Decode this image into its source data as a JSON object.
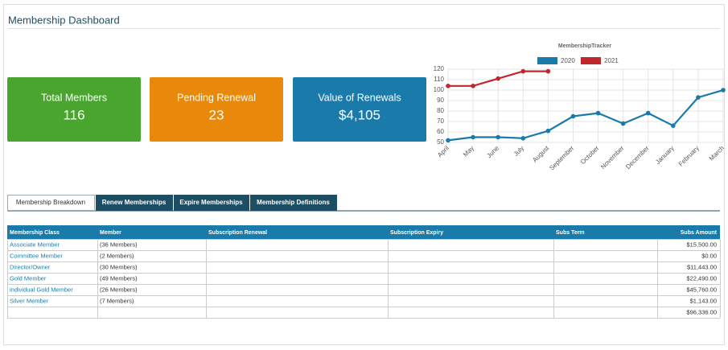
{
  "header": {
    "title": "Membership Dashboard"
  },
  "cards": [
    {
      "label": "Total Members",
      "value": "116"
    },
    {
      "label": "Pending Renewal",
      "value": "23"
    },
    {
      "label": "Value of Renewals",
      "value": "$4,105"
    }
  ],
  "chart_data": {
    "type": "line",
    "title": "MembershipTracker",
    "categories": [
      "April",
      "May",
      "June",
      "July",
      "August",
      "September",
      "October",
      "November",
      "December",
      "January",
      "February",
      "March"
    ],
    "series": [
      {
        "name": "2020",
        "color": "#1a7bab",
        "values": [
          52,
          55,
          55,
          54,
          61,
          75,
          78,
          68,
          78,
          66,
          93,
          100
        ]
      },
      {
        "name": "2021",
        "color": "#c1272d",
        "values": [
          104,
          104,
          111,
          118,
          118,
          null,
          null,
          null,
          null,
          null,
          null,
          null
        ]
      }
    ],
    "ylim": [
      50,
      120
    ],
    "yticks": [
      50,
      60,
      70,
      80,
      90,
      100,
      110,
      120
    ],
    "grid": true,
    "legend": "top"
  },
  "tabs": [
    "Membership Breakdown",
    "Renew Memberships",
    "Expire Memberships",
    "Membership Definitions"
  ],
  "table": {
    "columns": [
      "Membership Class",
      "Member",
      "Subscription Renewal",
      "Subscription Expiry",
      "Subs Term",
      "Subs Amount"
    ],
    "rows": [
      {
        "class": "Associate Member",
        "member": "(36 Members)",
        "amount": "$15,500.00"
      },
      {
        "class": "Committee Member",
        "member": "(2 Members)",
        "amount": "$0.00"
      },
      {
        "class": "Director/Owner",
        "member": "(30 Members)",
        "amount": "$11,443.00"
      },
      {
        "class": "Gold Member",
        "member": "(49 Members)",
        "amount": "$22,490.00"
      },
      {
        "class": "individual Gold Member",
        "member": "(26 Members)",
        "amount": "$45,760.00"
      },
      {
        "class": "Silver Member",
        "member": "(7 Members)",
        "amount": "$1,143.00"
      }
    ],
    "total": "$96,336.00"
  }
}
